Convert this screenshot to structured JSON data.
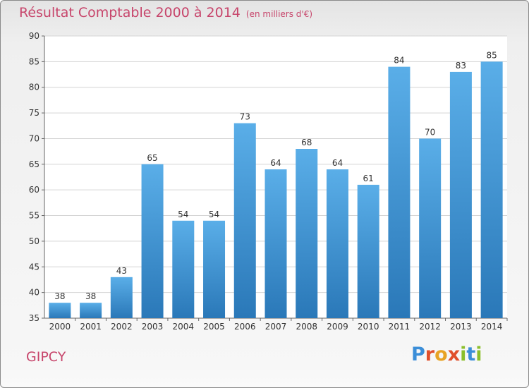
{
  "header": {
    "title": "Résultat Comptable 2000 à 2014",
    "subtitle": "(en milliers d'€)"
  },
  "footer": {
    "place": "GIPCY",
    "logo_letters": [
      "P",
      "r",
      "o",
      "x",
      "i",
      "t",
      "i"
    ]
  },
  "colors": {
    "title": "#c7456b",
    "bar_top": "#5aaee8",
    "bar_bottom": "#2a78b8"
  },
  "chart_data": {
    "type": "bar",
    "title": "Résultat Comptable 2000 à 2014",
    "subtitle": "(en milliers d'€)",
    "xlabel": "",
    "ylabel": "",
    "categories": [
      "2000",
      "2001",
      "2002",
      "2003",
      "2004",
      "2005",
      "2006",
      "2007",
      "2008",
      "2009",
      "2010",
      "2011",
      "2012",
      "2013",
      "2014"
    ],
    "values": [
      38,
      38,
      43,
      65,
      54,
      54,
      73,
      64,
      68,
      64,
      61,
      84,
      70,
      83,
      85
    ],
    "ylim": [
      35,
      90
    ],
    "yticks": [
      35,
      40,
      45,
      50,
      55,
      60,
      65,
      70,
      75,
      80,
      85,
      90
    ],
    "grid": true,
    "data_labels": true
  }
}
